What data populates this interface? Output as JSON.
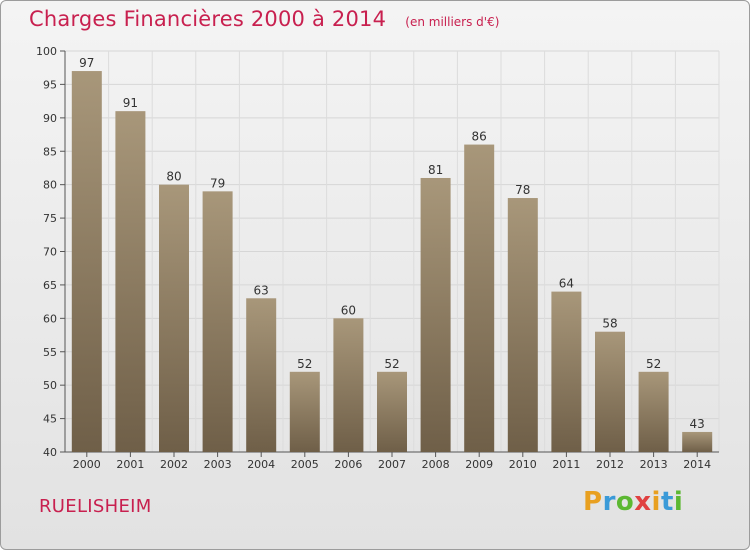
{
  "title": "Charges Financières 2000 à 2014",
  "subtitle": "(en milliers d'€)",
  "city": "RUELISHEIM",
  "logo": {
    "text": "Proxiti",
    "letters": [
      {
        "ch": "P",
        "color": "#e8a020"
      },
      {
        "ch": "r",
        "color": "#3a9ad8"
      },
      {
        "ch": "o",
        "color": "#5cb832"
      },
      {
        "ch": "x",
        "color": "#e04040"
      },
      {
        "ch": "i",
        "color": "#e8a020"
      },
      {
        "ch": "t",
        "color": "#3a9ad8"
      },
      {
        "ch": "i",
        "color": "#5cb832"
      }
    ]
  },
  "colors": {
    "accent": "#c8204f",
    "bar_top": "#a8977a",
    "bar_bottom": "#6f5f48"
  },
  "chart_data": {
    "type": "bar",
    "categories": [
      "2000",
      "2001",
      "2002",
      "2003",
      "2004",
      "2005",
      "2006",
      "2007",
      "2008",
      "2009",
      "2010",
      "2011",
      "2012",
      "2013",
      "2014"
    ],
    "values": [
      97,
      91,
      80,
      79,
      63,
      52,
      60,
      52,
      81,
      86,
      78,
      64,
      58,
      52,
      43
    ],
    "ylim": [
      40,
      100
    ],
    "yticks": [
      40,
      45,
      50,
      55,
      60,
      65,
      70,
      75,
      80,
      85,
      90,
      95,
      100
    ],
    "grid": true,
    "data_labels": true
  }
}
